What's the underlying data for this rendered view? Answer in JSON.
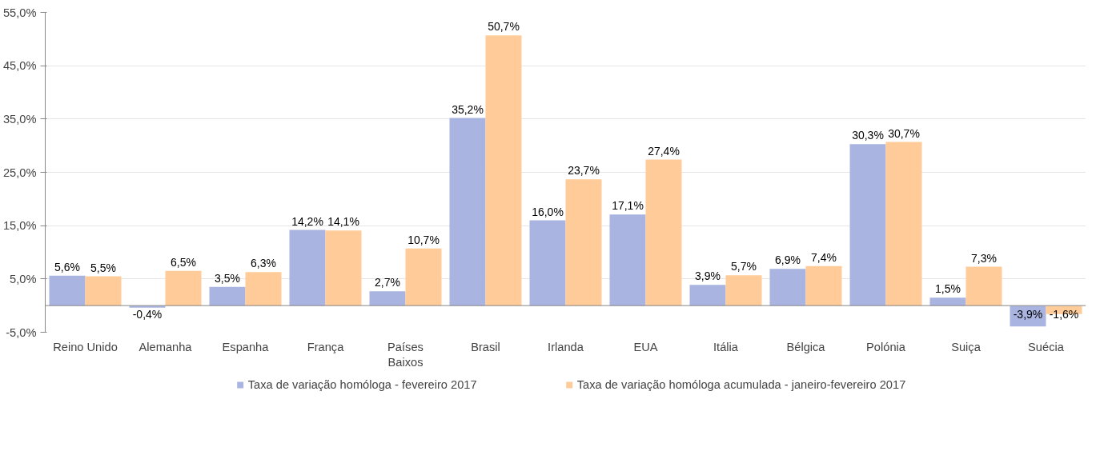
{
  "chart_data": {
    "type": "bar",
    "categories": [
      "Reino Unido",
      "Alemanha",
      "Espanha",
      "França",
      "Países Baixos",
      "Brasil",
      "Irlanda",
      "EUA",
      "Itália",
      "Bélgica",
      "Polónia",
      "Suiça",
      "Suécia"
    ],
    "series": [
      {
        "name": "Taxa de variação homóloga - fevereiro 2017",
        "color": "#aab4e0",
        "values": [
          5.6,
          -0.4,
          3.5,
          14.2,
          2.7,
          35.2,
          16.0,
          17.1,
          3.9,
          6.9,
          30.3,
          1.5,
          -3.9
        ],
        "value_labels": [
          "5,6%",
          "-0,4%",
          "3,5%",
          "14,2%",
          "2,7%",
          "35,2%",
          "16,0%",
          "17,1%",
          "3,9%",
          "6,9%",
          "30,3%",
          "1,5%",
          "-3,9%"
        ]
      },
      {
        "name": "Taxa de variação homóloga acumulada - janeiro-fevereiro 2017",
        "color": "#ffcc99",
        "values": [
          5.5,
          6.5,
          6.3,
          14.1,
          10.7,
          50.7,
          23.7,
          27.4,
          5.7,
          7.4,
          30.7,
          7.3,
          -1.6
        ],
        "value_labels": [
          "5,5%",
          "6,5%",
          "6,3%",
          "14,1%",
          "10,7%",
          "50,7%",
          "23,7%",
          "27,4%",
          "5,7%",
          "7,4%",
          "30,7%",
          "7,3%",
          "-1,6%"
        ]
      }
    ],
    "ylim": [
      -5,
      55
    ],
    "yticks": [
      {
        "value": -5,
        "label": "-5,0%"
      },
      {
        "value": 5,
        "label": "5,0%"
      },
      {
        "value": 15,
        "label": "15,0%"
      },
      {
        "value": 25,
        "label": "25,0%"
      },
      {
        "value": 35,
        "label": "35,0%"
      },
      {
        "value": 45,
        "label": "45,0%"
      },
      {
        "value": 55,
        "label": "55,0%"
      }
    ],
    "grid": "y",
    "legend": "bottom",
    "data_labels": true
  }
}
